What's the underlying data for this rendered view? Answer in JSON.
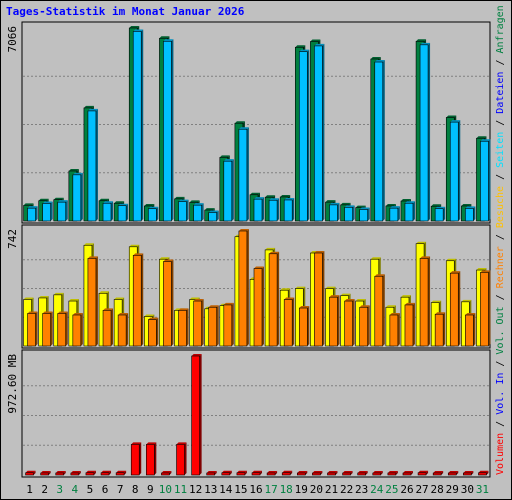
{
  "chart_data": {
    "title": "Tages-Statistik im Monat Januar 2026",
    "colors": {
      "background": "#C0C0C0",
      "border": "#000000",
      "title": "#0000FF",
      "day_weekday": "#000000",
      "day_weekend": "#008040",
      "anfragen": "#008040",
      "dateien": "#00C0FF",
      "seiten": "#00E0FF",
      "besuche": "#FFFF00",
      "rechner": "#FF8000",
      "volumen": "#FF0000",
      "grid": "#808080"
    },
    "right_legend": [
      {
        "text": "Volumen",
        "color": "#FF0000"
      },
      {
        "text": " / ",
        "color": "#000000"
      },
      {
        "text": "Vol. In",
        "color": "#0000FF"
      },
      {
        "text": " / ",
        "color": "#000000"
      },
      {
        "text": "Vol. Out",
        "color": "#008040"
      },
      {
        "text": " / ",
        "color": "#000000"
      },
      {
        "text": "Rechner",
        "color": "#FF8000"
      },
      {
        "text": " / ",
        "color": "#000000"
      },
      {
        "text": "Besuche",
        "color": "#FFC000"
      },
      {
        "text": " / ",
        "color": "#000000"
      },
      {
        "text": "Seiten",
        "color": "#00E0FF"
      },
      {
        "text": " / ",
        "color": "#000000"
      },
      {
        "text": "Dateien",
        "color": "#0000FF"
      },
      {
        "text": " / ",
        "color": "#000000"
      },
      {
        "text": "Anfragen",
        "color": "#008040"
      }
    ],
    "days": [
      "1",
      "2",
      "3",
      "4",
      "5",
      "6",
      "7",
      "8",
      "9",
      "10",
      "11",
      "12",
      "13",
      "14",
      "15",
      "16",
      "17",
      "18",
      "19",
      "20",
      "21",
      "22",
      "23",
      "24",
      "25",
      "26",
      "27",
      "28",
      "29",
      "30",
      "31"
    ],
    "weekend_days": [
      3,
      4,
      10,
      11,
      17,
      18,
      24,
      25,
      31
    ],
    "panels": [
      {
        "type": "bar",
        "max_label": "7066",
        "max": 7066,
        "series": [
          {
            "key": "anfragen",
            "values": [
              570,
              740,
              780,
              1830,
              4140,
              740,
              650,
              7066,
              550,
              6690,
              810,
              680,
              400,
              2330,
              3580,
              960,
              870,
              880,
              6360,
              6570,
              690,
              590,
              490,
              5930,
              550,
              730,
              6580,
              540,
              3790,
              550,
              3030
            ]
          },
          {
            "key": "dateien",
            "values": [
              470,
              640,
              690,
              1690,
              4030,
              650,
              560,
              6940,
              450,
              6580,
              710,
              580,
              310,
              2190,
              3360,
              800,
              760,
              770,
              6200,
              6410,
              590,
              500,
              420,
              5820,
              470,
              650,
              6450,
              450,
              3620,
              460,
              2920
            ]
          }
        ]
      },
      {
        "type": "bar",
        "max_label": "742",
        "max": 742,
        "series": [
          {
            "key": "besuche",
            "values": [
              300,
              310,
              330,
              290,
              650,
              340,
              300,
              640,
              190,
              560,
              230,
              300,
              240,
              260,
              705,
              430,
              620,
              360,
              370,
              600,
              370,
              325,
              290,
              560,
              250,
              315,
              660,
              280,
              550,
              285,
              490
            ]
          },
          {
            "key": "rechner",
            "values": [
              210,
              210,
              210,
              200,
              565,
              230,
              200,
              585,
              170,
              545,
              230,
              290,
              250,
              265,
              742,
              500,
              595,
              300,
              245,
              600,
              315,
              290,
              250,
              450,
              200,
              265,
              565,
              205,
              470,
              200,
              475
            ]
          }
        ]
      },
      {
        "type": "bar",
        "max_label": "972.60 MB",
        "max": 972.6,
        "series": [
          {
            "key": "volumen",
            "values": [
              18,
              12,
              12,
              15,
              18,
              18,
              18,
              250,
              250,
              12,
              250,
              972.6,
              12,
              18,
              18,
              18,
              12,
              18,
              12,
              12,
              12,
              12,
              12,
              12,
              12,
              12,
              18,
              12,
              12,
              12,
              18
            ]
          }
        ]
      }
    ]
  }
}
